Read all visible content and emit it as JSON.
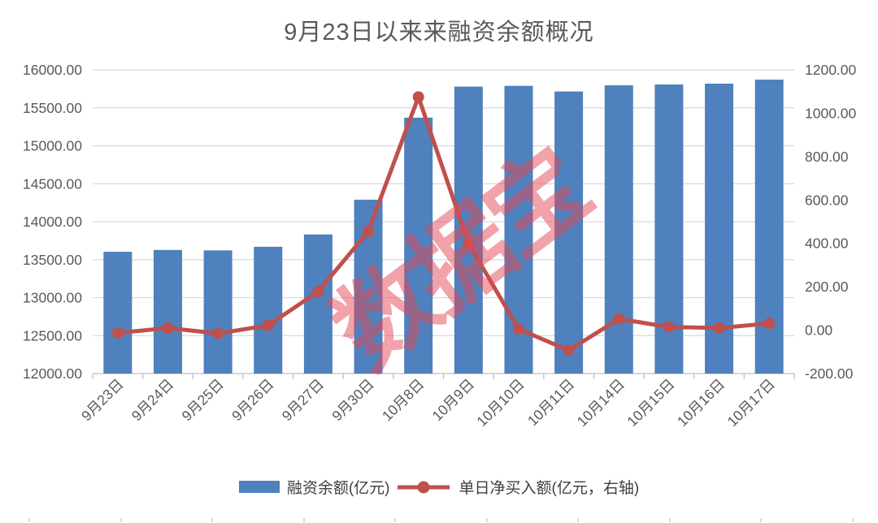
{
  "chart_data": {
    "type": "bar",
    "title": "9月23日以来来融资余额概况",
    "categories": [
      "9月23日",
      "9月24日",
      "9月25日",
      "9月26日",
      "9月27日",
      "9月30日",
      "10月8日",
      "10月9日",
      "10月10日",
      "10月11日",
      "10月14日",
      "10月15日",
      "10月16日",
      "10月17日"
    ],
    "series": [
      {
        "name": "融资余额(亿元)",
        "type": "bar",
        "axis": "left",
        "color": "#4e81bd",
        "values": [
          13604,
          13628,
          13622,
          13670,
          13832,
          14290,
          15370,
          15779,
          15789,
          15715,
          15796,
          15807,
          15818,
          15871
        ]
      },
      {
        "name": "单日净买入额(亿元，右轴)",
        "type": "line",
        "axis": "right",
        "color": "#c0504d",
        "values": [
          -13,
          10,
          -15,
          22,
          178,
          455,
          1075,
          400,
          5,
          -93,
          52,
          15,
          10,
          31
        ]
      }
    ],
    "left_axis": {
      "min": 12000,
      "max": 16000,
      "step": 500,
      "labels": [
        "16000.00",
        "15500.00",
        "15000.00",
        "14500.00",
        "14000.00",
        "13500.00",
        "13000.00",
        "12500.00",
        "12000.00"
      ]
    },
    "right_axis": {
      "min": -200,
      "max": 1200,
      "step": 200,
      "labels": [
        "1200.00",
        "1000.00",
        "800.00",
        "600.00",
        "400.00",
        "200.00",
        "0.00",
        "-200.00"
      ]
    },
    "grid": true,
    "legend_position": "bottom",
    "watermark": {
      "text": "数据宝",
      "rotation_deg": -37
    }
  },
  "style_colors": {
    "title_text": "#595959",
    "axis_text": "#595959",
    "gridline": "#d9d9d9",
    "axis_line": "#bfbfbf",
    "legend_text": "#3f3f3f",
    "bar_fill": "#4e81bd",
    "line_stroke": "#c0504d",
    "watermark_fill": "rgba(230,72,85,0.5)"
  },
  "decor": {
    "bottom_edge_mark_count": 10
  }
}
